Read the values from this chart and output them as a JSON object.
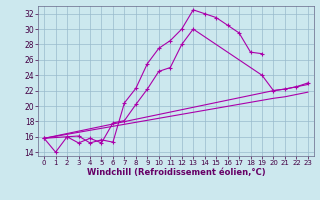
{
  "background_color": "#cce8ee",
  "grid_color": "#99bbcc",
  "line_color": "#aa00aa",
  "xlim": [
    -0.5,
    23.5
  ],
  "ylim": [
    13.5,
    33.0
  ],
  "yticks": [
    14,
    16,
    18,
    20,
    22,
    24,
    26,
    28,
    30,
    32
  ],
  "xticks": [
    0,
    1,
    2,
    3,
    4,
    5,
    6,
    7,
    8,
    9,
    10,
    11,
    12,
    13,
    14,
    15,
    16,
    17,
    18,
    19,
    20,
    21,
    22,
    23
  ],
  "xlabel": "Windchill (Refroidissement éolien,°C)",
  "line1_x": [
    0,
    1,
    2,
    3,
    4,
    5,
    6,
    7,
    8,
    9,
    10,
    11,
    12,
    13,
    14,
    15,
    16,
    17,
    18,
    19
  ],
  "line1_y": [
    15.8,
    14.0,
    16.0,
    16.1,
    15.2,
    15.6,
    15.3,
    20.4,
    22.3,
    25.5,
    27.5,
    28.5,
    30.0,
    32.5,
    32.0,
    31.5,
    30.5,
    29.5,
    27.0,
    26.8
  ],
  "line2_x": [
    0,
    2,
    3,
    4,
    5,
    6,
    7,
    8,
    9,
    10,
    11,
    12,
    13,
    19,
    20,
    21,
    22,
    23
  ],
  "line2_y": [
    15.8,
    16.0,
    15.2,
    15.8,
    15.2,
    17.8,
    18.1,
    20.2,
    22.2,
    24.5,
    25.0,
    28.0,
    30.0,
    24.0,
    22.0,
    22.2,
    22.5,
    23.0
  ],
  "line3_x": [
    0,
    20,
    21,
    22,
    23
  ],
  "line3_y": [
    15.8,
    22.0,
    22.2,
    22.5,
    22.8
  ],
  "line4_x": [
    0,
    20,
    21,
    22,
    23
  ],
  "line4_y": [
    15.8,
    21.0,
    21.2,
    21.5,
    21.8
  ],
  "tick_fontsize": 5.0,
  "xlabel_fontsize": 6.0,
  "ylabel_fontsize": 5.5,
  "linewidth": 0.8,
  "markersize": 3.5,
  "markeredgewidth": 0.8
}
